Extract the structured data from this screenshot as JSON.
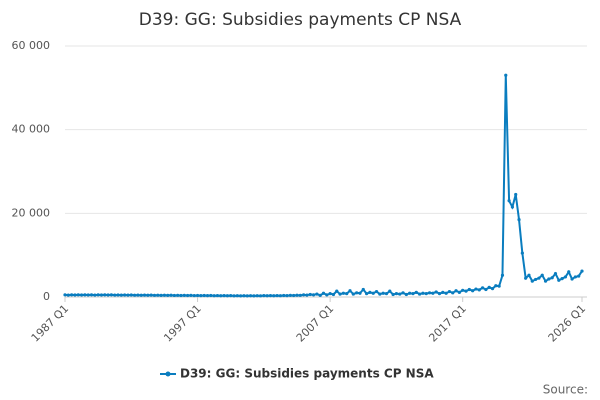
{
  "chart_data": {
    "type": "line",
    "title": "D39: GG: Subsidies payments CP NSA",
    "source": "Source:",
    "categories": [
      "1987 Q1",
      null,
      null,
      null,
      null,
      null,
      null,
      null,
      null,
      null,
      null,
      null,
      null,
      null,
      null,
      null,
      null,
      null,
      null,
      null,
      null,
      null,
      null,
      null,
      null,
      null,
      null,
      null,
      null,
      null,
      null,
      null,
      null,
      null,
      null,
      null,
      null,
      null,
      null,
      null,
      "1997 Q1",
      null,
      null,
      null,
      null,
      null,
      null,
      null,
      null,
      null,
      null,
      null,
      null,
      null,
      null,
      null,
      null,
      null,
      null,
      null,
      null,
      null,
      null,
      null,
      null,
      null,
      null,
      null,
      null,
      null,
      null,
      null,
      null,
      null,
      null,
      null,
      null,
      null,
      null,
      null,
      "2007 Q1",
      null,
      null,
      null,
      null,
      null,
      null,
      null,
      null,
      null,
      null,
      null,
      null,
      null,
      null,
      null,
      null,
      null,
      null,
      null,
      null,
      null,
      null,
      null,
      null,
      null,
      null,
      null,
      null,
      null,
      null,
      null,
      null,
      null,
      null,
      null,
      null,
      null,
      null,
      null,
      "2017 Q1",
      null,
      null,
      null,
      null,
      null,
      null,
      null,
      null,
      null,
      null,
      null,
      null,
      null,
      null,
      null,
      null,
      null,
      null,
      null,
      null,
      null,
      null,
      null,
      null,
      null,
      null,
      null,
      null,
      null,
      null,
      null,
      null,
      null,
      null,
      null,
      "2026 Q1"
    ],
    "series": [
      {
        "name": "D39: GG: Subsidies payments CP NSA",
        "color": "#0a7dbf",
        "values": [
          500,
          450,
          500,
          480,
          520,
          470,
          510,
          490,
          500,
          460,
          520,
          480,
          510,
          470,
          500,
          460,
          490,
          450,
          480,
          440,
          470,
          430,
          460,
          420,
          450,
          410,
          440,
          400,
          430,
          390,
          420,
          380,
          410,
          370,
          400,
          360,
          390,
          350,
          380,
          340,
          370,
          330,
          360,
          320,
          350,
          310,
          340,
          300,
          330,
          290,
          320,
          280,
          310,
          270,
          300,
          260,
          300,
          270,
          310,
          280,
          320,
          290,
          330,
          300,
          340,
          310,
          360,
          330,
          380,
          350,
          420,
          400,
          500,
          450,
          600,
          500,
          700,
          400,
          900,
          500,
          800,
          600,
          1400,
          700,
          900,
          800,
          1500,
          700,
          1000,
          900,
          1800,
          800,
          1100,
          900,
          1300,
          700,
          900,
          800,
          1400,
          600,
          800,
          700,
          1000,
          600,
          900,
          800,
          1100,
          700,
          900,
          800,
          1000,
          900,
          1200,
          800,
          1100,
          900,
          1300,
          1000,
          1500,
          1100,
          1600,
          1400,
          1800,
          1500,
          1900,
          1700,
          2200,
          1800,
          2300,
          2000,
          2700,
          2600,
          5200,
          53000,
          23000,
          21500,
          24500,
          18500,
          10500,
          4500,
          5200,
          3800,
          4200,
          4500,
          5200,
          3800,
          4300,
          4600,
          5600,
          4000,
          4400,
          4800,
          6000,
          4300,
          4800,
          5000,
          6200
        ]
      }
    ],
    "ylim": [
      0,
      60000
    ],
    "yticks": [
      0,
      {
        "value": 20000,
        "label": "20 000"
      },
      {
        "value": 40000,
        "label": "40 000"
      },
      {
        "value": 60000,
        "label": "60 000"
      }
    ],
    "grid": true
  }
}
